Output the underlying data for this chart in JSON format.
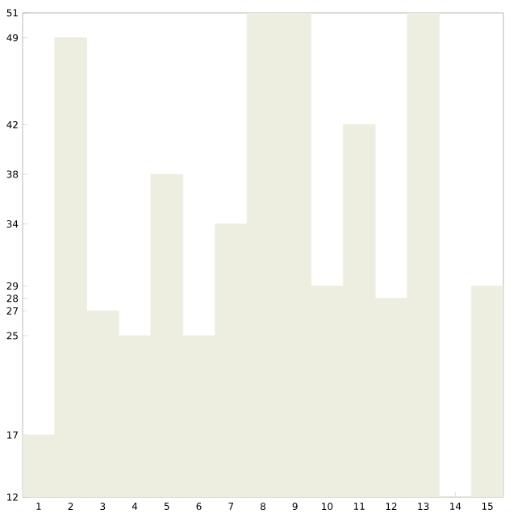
{
  "chart_data": {
    "type": "bar",
    "categories": [
      "1",
      "2",
      "3",
      "4",
      "5",
      "6",
      "7",
      "8",
      "9",
      "10",
      "11",
      "12",
      "13",
      "14",
      "15"
    ],
    "values": [
      17,
      49,
      27,
      25,
      38,
      25,
      34,
      51,
      51,
      29,
      42,
      28,
      51,
      12,
      29
    ],
    "color": "#eeeee0",
    "ylim": [
      12,
      51
    ],
    "yticks": [
      12,
      17,
      25,
      27,
      28,
      29,
      34,
      38,
      42,
      49,
      51
    ],
    "grid": false
  }
}
